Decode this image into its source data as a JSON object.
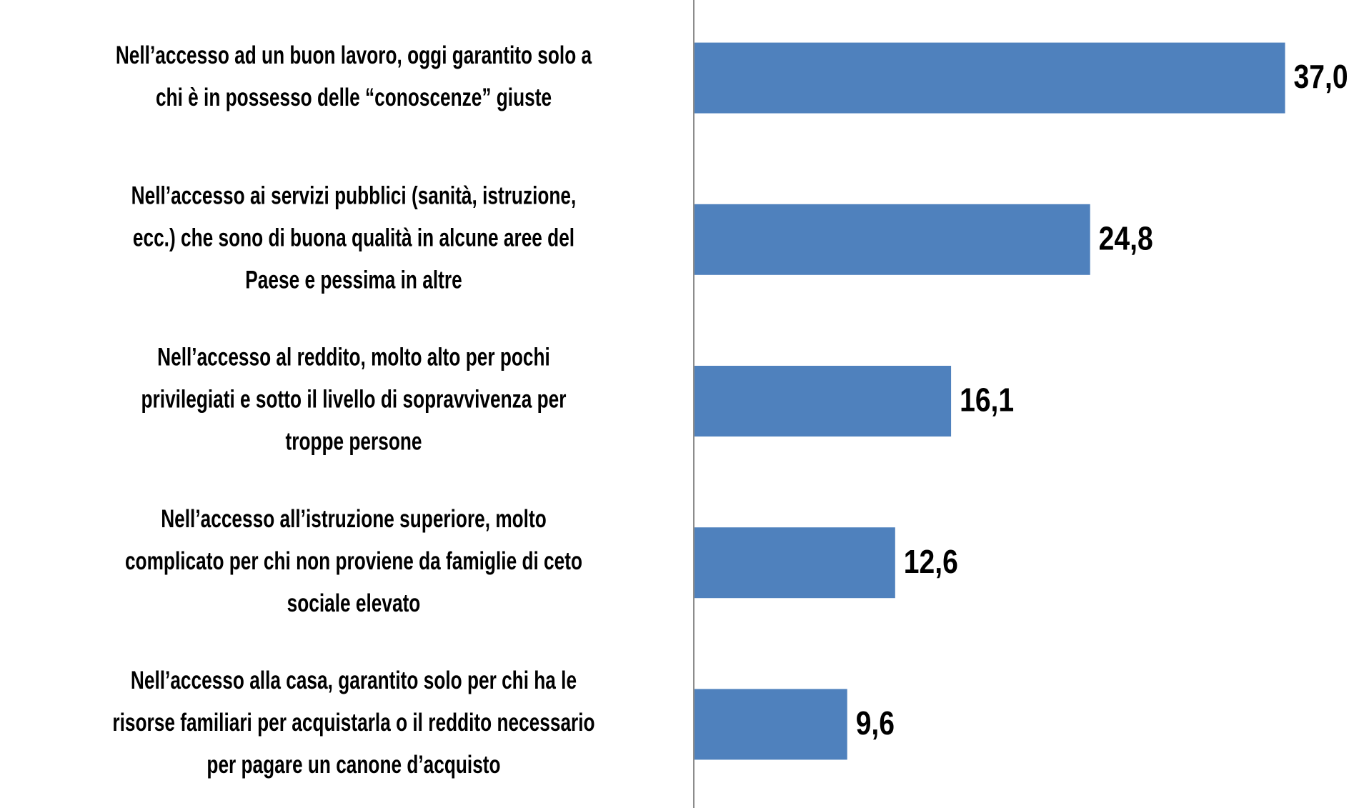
{
  "chart_data": {
    "type": "barh",
    "categories": [
      [
        "Nell’accesso ad un buon lavoro, oggi garantito solo a",
        "chi è in possesso delle “conoscenze” giuste"
      ],
      [
        "Nell’accesso ai servizi pubblici (sanità, istruzione,",
        "ecc.) che sono di buona qualità in alcune aree del",
        "Paese e pessima in altre"
      ],
      [
        "Nell’accesso al reddito, molto alto per pochi",
        "privilegiati e sotto il livello di sopravvivenza per",
        "troppe persone"
      ],
      [
        "Nell’accesso all’istruzione superiore, molto",
        "complicato per chi non proviene da famiglie di ceto",
        "sociale elevato"
      ],
      [
        "Nell’accesso alla casa, garantito solo per chi ha le",
        "risorse familiari per acquistarla o il reddito necessario",
        "per pagare un canone d’acquisto"
      ]
    ],
    "values": [
      37.0,
      24.8,
      16.1,
      12.6,
      9.6
    ],
    "value_labels": [
      "37,0",
      "24,8",
      "16,1",
      "12,6",
      "9,6"
    ],
    "color": "#4f81bd",
    "xlim": [
      0,
      41
    ]
  }
}
